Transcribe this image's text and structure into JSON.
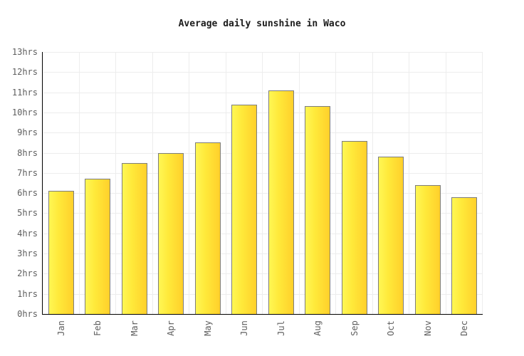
{
  "title": "Average daily sunshine in Waco",
  "chart_data": {
    "type": "bar",
    "title": "Average daily sunshine in Waco",
    "categories": [
      "Jan",
      "Feb",
      "Mar",
      "Apr",
      "May",
      "Jun",
      "Jul",
      "Aug",
      "Sep",
      "Oct",
      "Nov",
      "Dec"
    ],
    "values": [
      6.1,
      6.7,
      7.5,
      8.0,
      8.5,
      10.4,
      11.1,
      10.3,
      8.6,
      7.8,
      6.4,
      5.8
    ],
    "unit": "hrs",
    "xlabel": "",
    "ylabel": "",
    "ylim": [
      0,
      13
    ],
    "y_tick_step": 1,
    "y_tick_labels": [
      "0hrs",
      "1hrs",
      "2hrs",
      "3hrs",
      "4hrs",
      "5hrs",
      "6hrs",
      "7hrs",
      "8hrs",
      "9hrs",
      "10hrs",
      "11hrs",
      "12hrs",
      "13hrs"
    ],
    "grid": true,
    "legend": "none",
    "colors": {
      "bar_gradient_left": "#fff754",
      "bar_gradient_mid": "#ffe93a",
      "bar_gradient_right": "#ffd02b",
      "bar_border": "#7d7d7d",
      "axis": "#000000",
      "grid_line": "#ededed",
      "tick_label": "#5e5e5e",
      "title": "#1c1c1c",
      "background": "#ffffff"
    }
  }
}
